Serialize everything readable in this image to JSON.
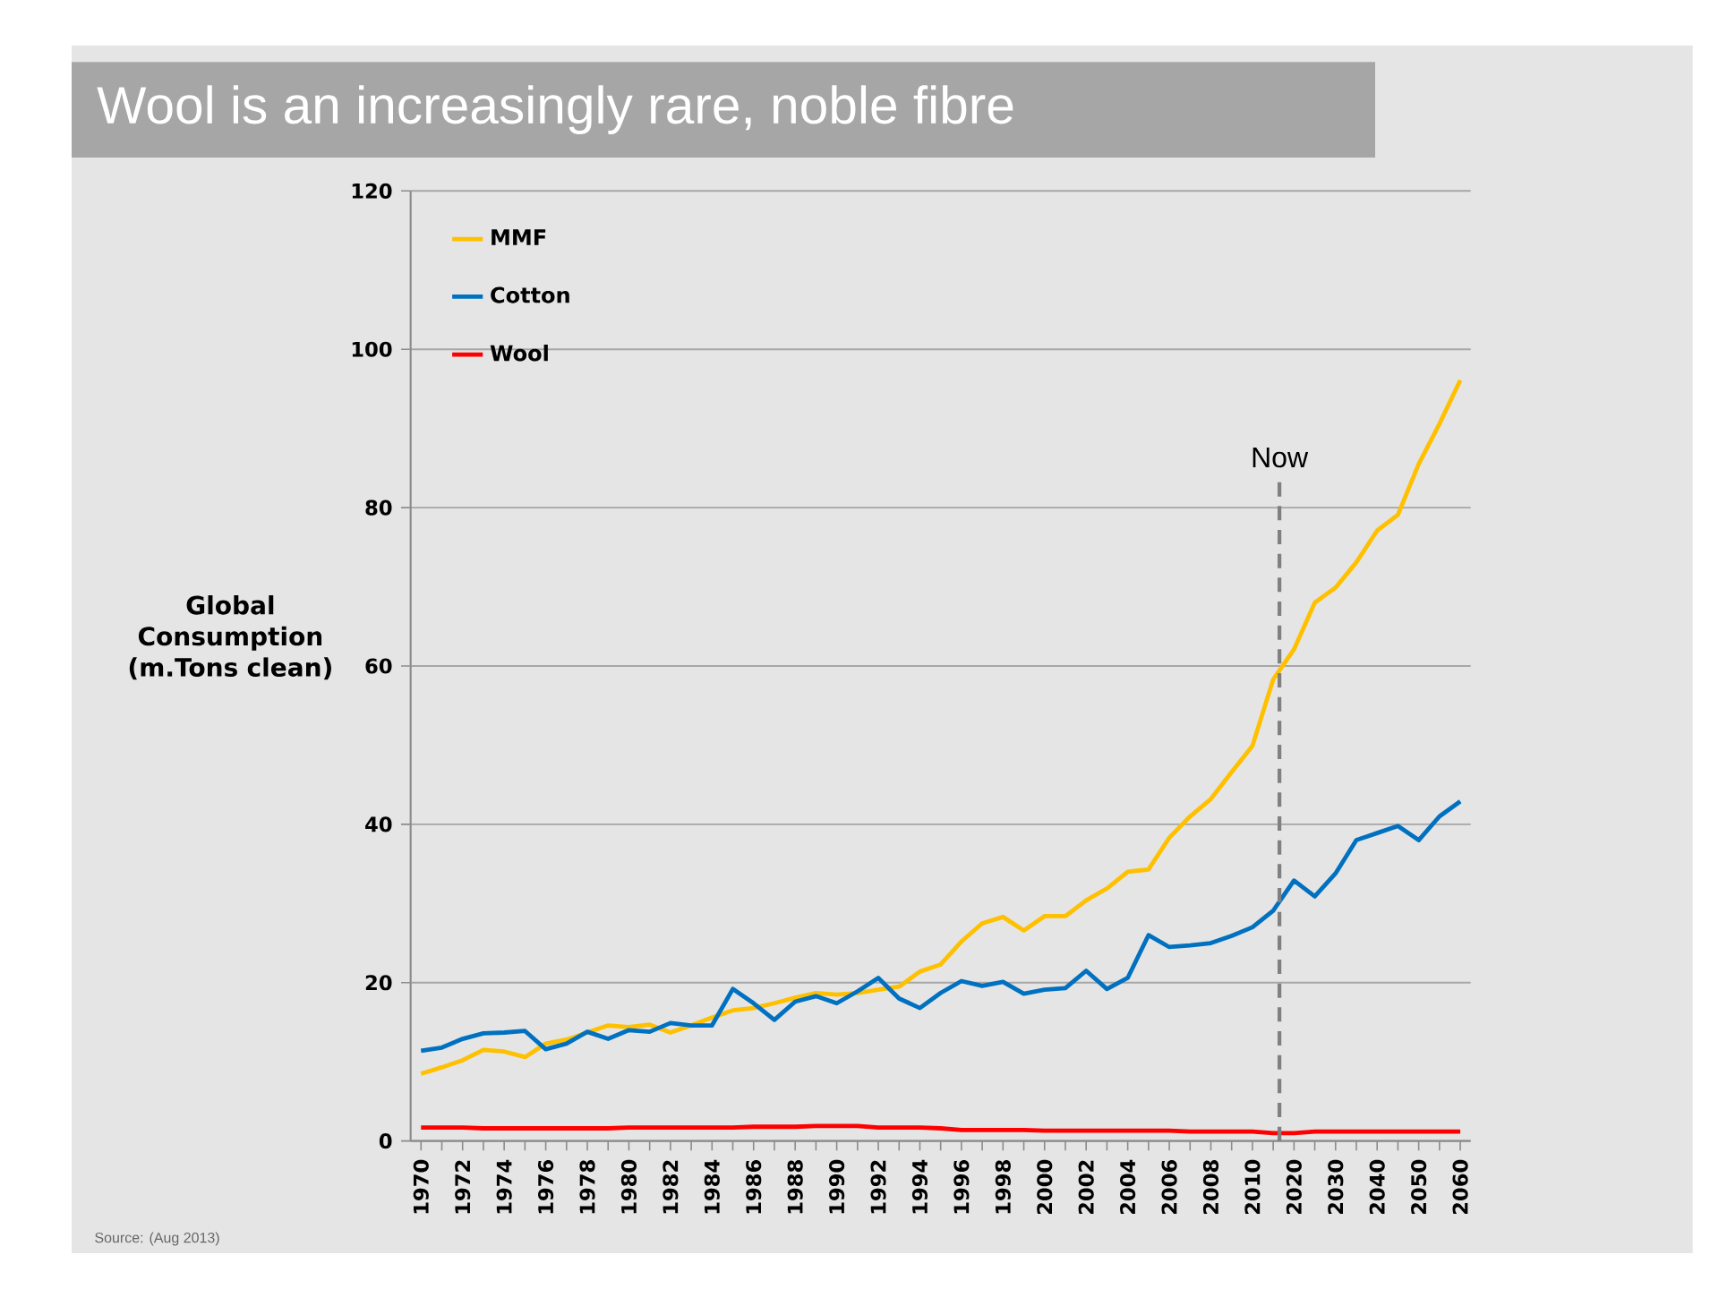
{
  "chart_data": {
    "type": "line",
    "title": "Wool is an increasingly rare, noble fibre",
    "ylabel": "Global Consumption (m.Tons clean)",
    "categories": [
      "1970",
      null,
      "1972",
      null,
      "1974",
      null,
      "1976",
      null,
      "1978",
      null,
      "1980",
      null,
      "1982",
      null,
      "1984",
      null,
      "1986",
      null,
      "1988",
      null,
      "1990",
      null,
      "1992",
      null,
      "1994",
      null,
      "1996",
      null,
      "1998",
      null,
      "2000",
      null,
      "2002",
      null,
      "2004",
      null,
      "2006",
      null,
      "2008",
      null,
      "2010",
      null,
      "2020",
      null,
      "2030",
      null,
      "2040",
      null,
      "2050",
      null,
      "2060"
    ],
    "series": [
      {
        "name": "MMF",
        "color": "#ffc000",
        "values": [
          8.5,
          9.3,
          10.2,
          11.5,
          11.3,
          10.6,
          12.3,
          12.8,
          13.7,
          14.6,
          14.4,
          14.7,
          13.7,
          14.6,
          15.6,
          16.5,
          16.8,
          17.4,
          18.1,
          18.7,
          18.5,
          18.7,
          19.1,
          19.5,
          21.4,
          22.3,
          25.2,
          27.5,
          28.3,
          26.6,
          28.4,
          28.4,
          30.4,
          31.9,
          34.0,
          34.3,
          38.3,
          41.0,
          43.2,
          46.6,
          49.9,
          58.3,
          62.1,
          68.0,
          69.9,
          73.1,
          77.1,
          79.1,
          85.5,
          90.6,
          96.1
        ]
      },
      {
        "name": "Cotton",
        "color": "#0070c0",
        "values": [
          11.4,
          11.8,
          12.9,
          13.6,
          13.7,
          13.9,
          11.6,
          12.3,
          13.8,
          12.9,
          14.0,
          13.8,
          14.9,
          14.6,
          14.6,
          19.2,
          17.4,
          15.3,
          17.6,
          18.3,
          17.4,
          18.9,
          20.6,
          18.0,
          16.8,
          18.7,
          20.2,
          19.6,
          20.1,
          18.6,
          19.1,
          19.3,
          21.5,
          19.2,
          20.6,
          26.0,
          24.5,
          24.7,
          25.0,
          25.9,
          27.0,
          29.1,
          32.9,
          30.9,
          33.8,
          38.0,
          38.9,
          39.8,
          38.0,
          41.0,
          42.9
        ]
      },
      {
        "name": "Wool",
        "color": "#ff0000",
        "values": [
          1.7,
          1.7,
          1.7,
          1.6,
          1.6,
          1.6,
          1.6,
          1.6,
          1.6,
          1.6,
          1.7,
          1.7,
          1.7,
          1.7,
          1.7,
          1.7,
          1.8,
          1.8,
          1.8,
          1.9,
          1.9,
          1.9,
          1.7,
          1.7,
          1.7,
          1.6,
          1.4,
          1.4,
          1.4,
          1.4,
          1.3,
          1.3,
          1.3,
          1.3,
          1.3,
          1.3,
          1.3,
          1.2,
          1.2,
          1.2,
          1.2,
          1.0,
          1.0,
          1.2,
          1.2,
          1.2,
          1.2,
          1.2,
          1.2,
          1.2,
          1.2
        ]
      }
    ],
    "ylim": [
      0,
      120
    ],
    "yticks": [
      0,
      20,
      40,
      60,
      80,
      100,
      120
    ],
    "grid": "y",
    "legend": "top left",
    "annotations": [
      "Source: (Aug 2013)",
      "Now"
    ]
  }
}
